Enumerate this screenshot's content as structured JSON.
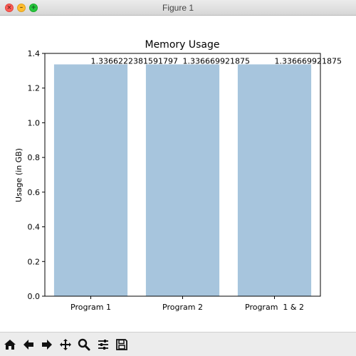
{
  "window": {
    "title": "Figure 1"
  },
  "toolbar": {
    "buttons": [
      "home-icon",
      "back-arrow-icon",
      "forward-arrow-icon",
      "pan-icon",
      "zoom-icon",
      "configure-subplots-icon",
      "save-icon"
    ]
  },
  "colors": {
    "bar": "#a7c5dd",
    "axis": "#000000"
  },
  "chart_data": {
    "type": "bar",
    "title": "Memory Usage",
    "xlabel": "",
    "ylabel": "Usage (in GB)",
    "categories": [
      "Program 1",
      "Program 2",
      "Program  1 & 2"
    ],
    "values": [
      1.3366222381591797,
      1.336669921875,
      1.336669921875
    ],
    "value_labels": [
      "1.3366222381591797",
      "1.336669921875",
      "1.336669921875"
    ],
    "ylim": [
      0,
      1.4
    ],
    "yticks": [
      "0.0",
      "0.2",
      "0.4",
      "0.6",
      "0.8",
      "1.0",
      "1.2",
      "1.4"
    ],
    "grid": false
  }
}
